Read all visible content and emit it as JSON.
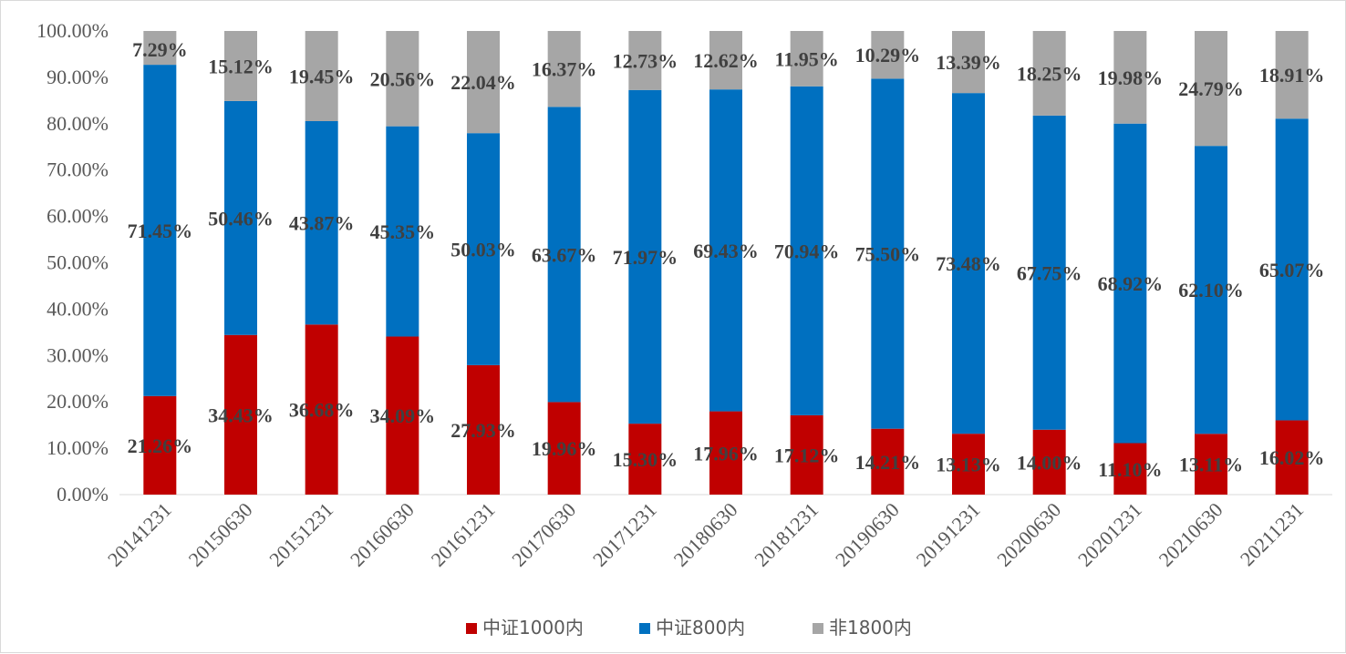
{
  "chart_data": {
    "type": "bar",
    "stacked": true,
    "title": "",
    "xlabel": "",
    "ylabel": "",
    "ylim": [
      0,
      100
    ],
    "y_ticks": [
      "0.00%",
      "10.00%",
      "20.00%",
      "30.00%",
      "40.00%",
      "50.00%",
      "60.00%",
      "70.00%",
      "80.00%",
      "90.00%",
      "100.00%"
    ],
    "grid": false,
    "legend_position": "bottom",
    "categories": [
      "20141231",
      "20150630",
      "20151231",
      "20160630",
      "20161231",
      "20170630",
      "20171231",
      "20180630",
      "20181231",
      "20190630",
      "20191231",
      "20200630",
      "20201231",
      "20210630",
      "20211231"
    ],
    "series": [
      {
        "name": "中证1000内",
        "color": "#C00000",
        "values": [
          21.26,
          34.43,
          36.68,
          34.09,
          27.93,
          19.96,
          15.3,
          17.96,
          17.12,
          14.21,
          13.13,
          14.0,
          11.1,
          13.11,
          16.02
        ],
        "labels": [
          "21.26%",
          "34.43%",
          "36.68%",
          "34.09%",
          "27.93%",
          "19.96%",
          "15.30%",
          "17.96%",
          "17.12%",
          "14.21%",
          "13.13%",
          "14.00%",
          "11.10%",
          "13.11%",
          "16.02%"
        ]
      },
      {
        "name": "中证800内",
        "color": "#0070C0",
        "values": [
          71.45,
          50.46,
          43.87,
          45.35,
          50.03,
          63.67,
          71.97,
          69.43,
          70.94,
          75.5,
          73.48,
          67.75,
          68.92,
          62.1,
          65.07
        ],
        "labels": [
          "71.45%",
          "50.46%",
          "43.87%",
          "45.35%",
          "50.03%",
          "63.67%",
          "71.97%",
          "69.43%",
          "70.94%",
          "75.50%",
          "73.48%",
          "67.75%",
          "68.92%",
          "62.10%",
          "65.07%"
        ]
      },
      {
        "name": "非1800内",
        "color": "#A6A6A6",
        "values": [
          7.29,
          15.12,
          19.45,
          20.56,
          22.04,
          16.37,
          12.73,
          12.62,
          11.95,
          10.29,
          13.39,
          18.25,
          19.98,
          24.79,
          18.91
        ],
        "labels": [
          "7.29%",
          "15.12%",
          "19.45%",
          "20.56%",
          "22.04%",
          "16.37%",
          "12.73%",
          "12.62%",
          "11.95%",
          "10.29%",
          "13.39%",
          "18.25%",
          "19.98%",
          "24.79%",
          "18.91%"
        ]
      }
    ]
  }
}
